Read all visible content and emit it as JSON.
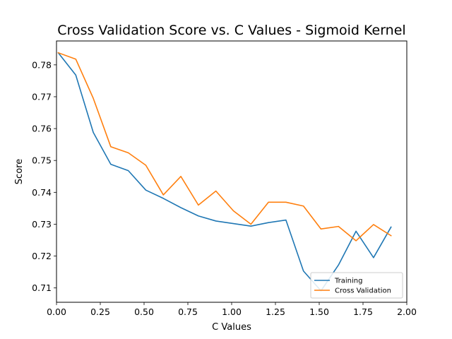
{
  "chart_data": {
    "type": "line",
    "title": "Cross Validation Score vs. C Values - Sigmoid Kernel",
    "xlabel": "C Values",
    "ylabel": "Score",
    "xlim": [
      0.0,
      2.0
    ],
    "ylim": [
      0.7055,
      0.7875
    ],
    "xticks": [
      "0.00",
      "0.25",
      "0.50",
      "0.75",
      "1.00",
      "1.25",
      "1.50",
      "1.75",
      "2.00"
    ],
    "yticks": [
      "0.71",
      "0.72",
      "0.73",
      "0.74",
      "0.75",
      "0.76",
      "0.77",
      "0.78"
    ],
    "x": [
      0.01,
      0.11,
      0.21,
      0.31,
      0.41,
      0.51,
      0.61,
      0.71,
      0.81,
      0.91,
      1.01,
      1.11,
      1.21,
      1.31,
      1.41,
      1.51,
      1.61,
      1.71,
      1.81,
      1.91
    ],
    "series": [
      {
        "name": "Training",
        "color": "#1f77b4",
        "values": [
          0.7838,
          0.7768,
          0.7588,
          0.7488,
          0.7468,
          0.7407,
          0.7381,
          0.7352,
          0.7326,
          0.731,
          0.7302,
          0.7294,
          0.7305,
          0.7313,
          0.7153,
          0.7091,
          0.7172,
          0.7278,
          0.7195,
          0.7291
        ]
      },
      {
        "name": "Cross Validation",
        "color": "#ff7f0e",
        "values": [
          0.7838,
          0.7818,
          0.7695,
          0.7543,
          0.7524,
          0.7485,
          0.7392,
          0.745,
          0.736,
          0.7404,
          0.7342,
          0.73,
          0.7369,
          0.7369,
          0.7357,
          0.7285,
          0.7293,
          0.7248,
          0.7299,
          0.7264
        ]
      }
    ],
    "grid": false,
    "legend_position": "bottom-right"
  }
}
